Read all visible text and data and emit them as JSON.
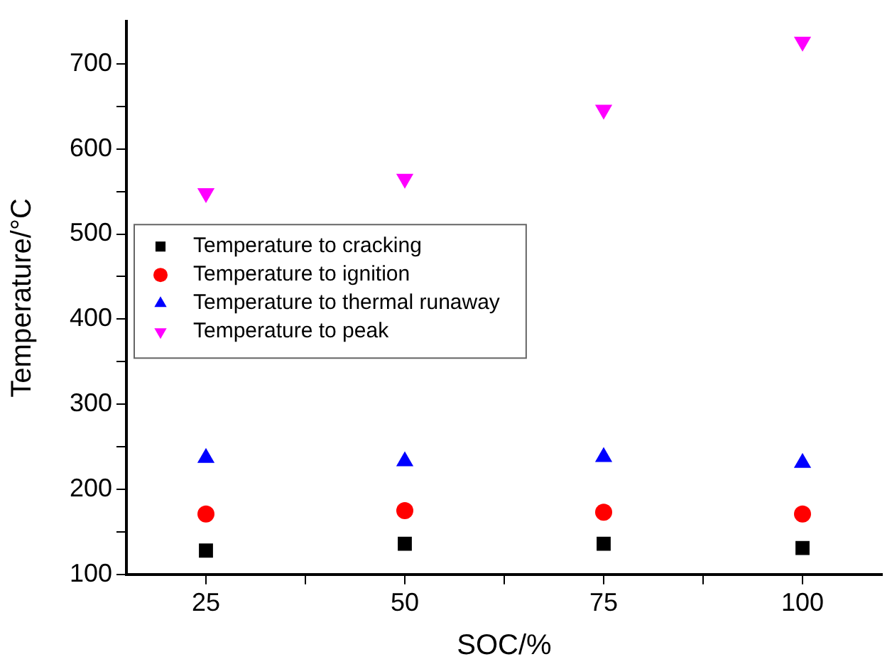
{
  "chart_data": {
    "type": "scatter",
    "xlabel": "SOC/%",
    "ylabel": "Temperature/°C",
    "x": [
      25,
      50,
      75,
      100
    ],
    "series": [
      {
        "name": "Temperature to cracking",
        "color": "#000000",
        "marker": "square",
        "values": [
          128,
          136,
          136,
          131
        ]
      },
      {
        "name": "Temperature to ignition",
        "color": "#ff0000",
        "marker": "circle",
        "values": [
          171,
          175,
          173,
          171
        ]
      },
      {
        "name": "Temperature to thermal runaway",
        "color": "#0000ff",
        "marker": "triangle",
        "values": [
          237,
          233,
          238,
          231
        ]
      },
      {
        "name": "Temperature to peak",
        "color": "#ff00ff",
        "marker": "triangle_down",
        "values": [
          548,
          565,
          646,
          726
        ]
      }
    ],
    "xlim": [
      15,
      110
    ],
    "xticks": [
      25,
      {
        "value": 37.5,
        "label": null
      },
      50,
      {
        "value": 62.5,
        "label": null
      },
      75,
      {
        "value": 87.5,
        "label": null
      },
      100
    ],
    "ylim": [
      100,
      750
    ],
    "yticks": [
      100,
      {
        "value": 150,
        "label": null
      },
      200,
      {
        "value": 250,
        "label": null
      },
      300,
      {
        "value": 350,
        "label": null
      },
      400,
      {
        "value": 450,
        "label": null
      },
      500,
      {
        "value": 550,
        "label": null
      },
      600,
      {
        "value": 650,
        "label": null
      },
      700
    ],
    "grid": false,
    "legend": "left"
  }
}
